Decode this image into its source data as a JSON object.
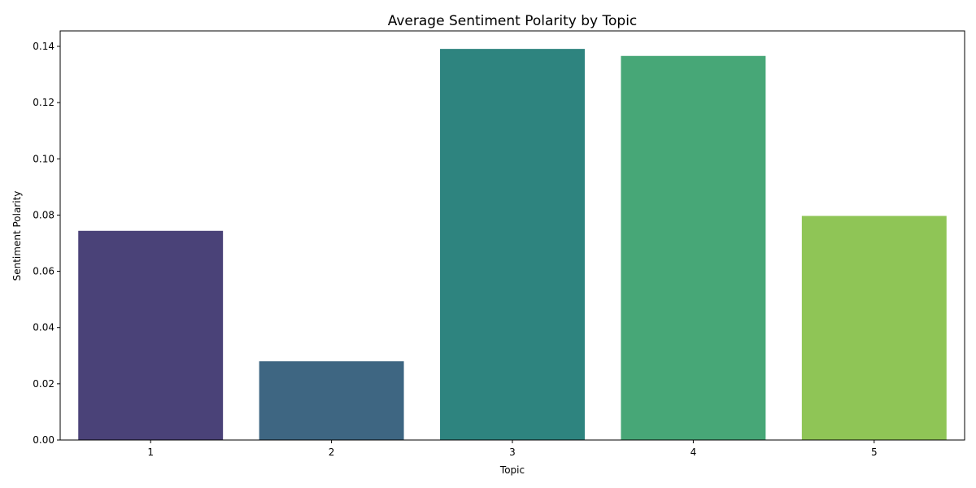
{
  "chart_data": {
    "type": "bar",
    "title": "Average Sentiment Polarity by Topic",
    "xlabel": "Topic",
    "ylabel": "Sentiment Polarity",
    "categories": [
      "1",
      "2",
      "3",
      "4",
      "5"
    ],
    "values": [
      0.0744,
      0.028,
      0.1391,
      0.1366,
      0.0797
    ],
    "colors": [
      "#4a4278",
      "#3e6682",
      "#2e847f",
      "#47a777",
      "#8fc556"
    ],
    "ylim": [
      0,
      0.1455
    ],
    "yticks": [
      "0.00",
      "0.02",
      "0.04",
      "0.06",
      "0.08",
      "0.10",
      "0.12",
      "0.14"
    ],
    "grid": false,
    "legend": "none"
  }
}
